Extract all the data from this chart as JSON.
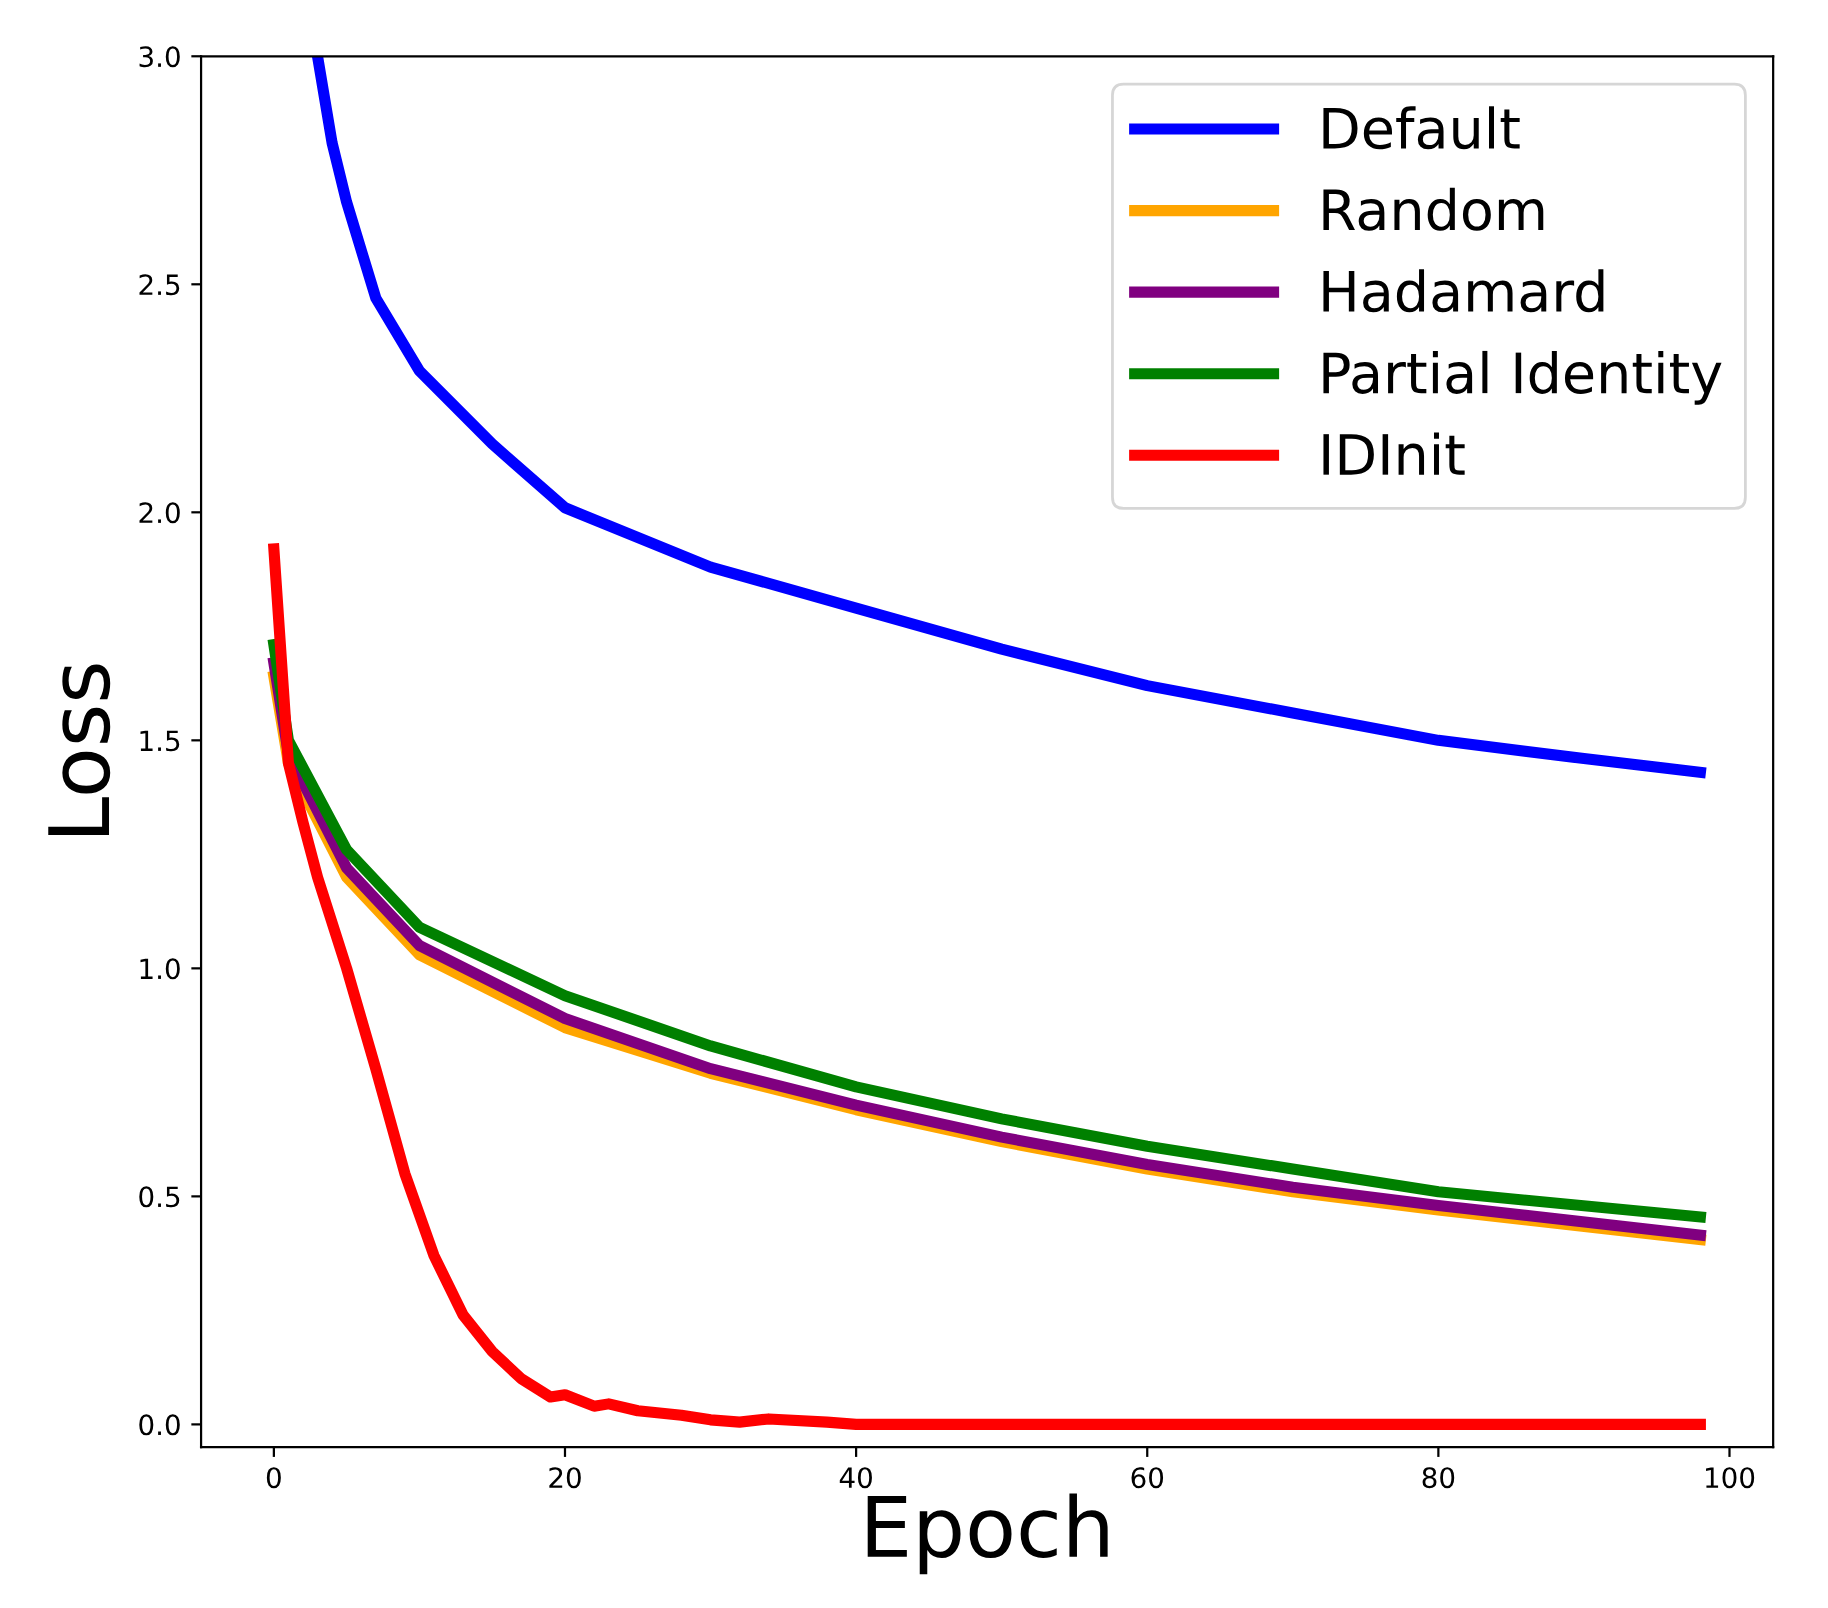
{
  "chart_data": {
    "type": "line",
    "xlabel": "Epoch",
    "ylabel": "Loss",
    "xlim": [
      -5,
      103
    ],
    "ylim": [
      -0.05,
      3.0
    ],
    "xticks": [
      0,
      20,
      40,
      60,
      80,
      100
    ],
    "yticks": [
      {
        "value": 0,
        "label": "0.0"
      },
      0.5,
      {
        "value": 1,
        "label": "1.0"
      },
      1.5,
      {
        "value": 2,
        "label": "2.0"
      },
      2.5,
      {
        "value": 3,
        "label": "3.0"
      }
    ],
    "legend": "top right",
    "grid": false,
    "marker": "none",
    "line_style": "solid",
    "series": [
      {
        "name": "Default",
        "color": "#0000ff",
        "x": [
          3,
          4,
          5,
          7,
          10,
          15,
          20,
          30,
          40,
          50,
          60,
          70,
          80,
          90,
          98
        ],
        "values": [
          3.0,
          2.81,
          2.68,
          2.47,
          2.31,
          2.15,
          2.01,
          1.88,
          1.79,
          1.7,
          1.62,
          1.56,
          1.5,
          1.46,
          1.43
        ]
      },
      {
        "name": "Random",
        "color": "#ffa500",
        "x": [
          0,
          1,
          5,
          10,
          20,
          30,
          40,
          50,
          60,
          70,
          80,
          98
        ],
        "values": [
          1.64,
          1.45,
          1.2,
          1.03,
          0.87,
          0.77,
          0.69,
          0.62,
          0.56,
          0.51,
          0.47,
          0.405
        ]
      },
      {
        "name": "Hadamard",
        "color": "#800080",
        "x": [
          0,
          1,
          5,
          10,
          20,
          30,
          40,
          50,
          60,
          70,
          80,
          98
        ],
        "values": [
          1.67,
          1.47,
          1.22,
          1.05,
          0.89,
          0.78,
          0.7,
          0.63,
          0.57,
          0.52,
          0.48,
          0.415
        ]
      },
      {
        "name": "Partial Identity",
        "color": "#008000",
        "x": [
          0,
          1,
          5,
          10,
          20,
          30,
          40,
          50,
          60,
          70,
          80,
          98
        ],
        "values": [
          1.71,
          1.5,
          1.26,
          1.09,
          0.94,
          0.83,
          0.74,
          0.67,
          0.61,
          0.56,
          0.51,
          0.455
        ]
      },
      {
        "name": "IDInit",
        "color": "#ff0000",
        "x": [
          0,
          1,
          2,
          3,
          5,
          7,
          9,
          11,
          13,
          15,
          17,
          19,
          20,
          22,
          23,
          25,
          28,
          30,
          32,
          34,
          38,
          40,
          98
        ],
        "values": [
          1.92,
          1.45,
          1.32,
          1.2,
          1.0,
          0.78,
          0.55,
          0.37,
          0.24,
          0.16,
          0.1,
          0.06,
          0.065,
          0.04,
          0.045,
          0.03,
          0.02,
          0.01,
          0.005,
          0.012,
          0.005,
          0.0,
          0.0
        ]
      }
    ]
  }
}
